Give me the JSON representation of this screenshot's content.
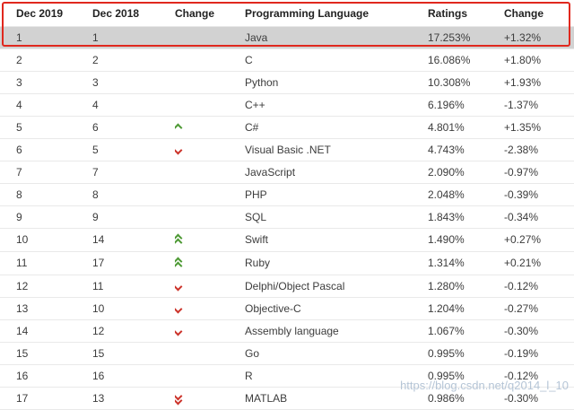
{
  "chart_data": {
    "type": "table",
    "columns": [
      "Dec 2019",
      "Dec 2018",
      "Change",
      "Programming Language",
      "Ratings",
      "Change"
    ],
    "highlight_row_index": 0,
    "rows": [
      {
        "r19": "1",
        "r18": "1",
        "chg": "",
        "lang": "Java",
        "rating": "17.253%",
        "delta": "+1.32%"
      },
      {
        "r19": "2",
        "r18": "2",
        "chg": "",
        "lang": "C",
        "rating": "16.086%",
        "delta": "+1.80%"
      },
      {
        "r19": "3",
        "r18": "3",
        "chg": "",
        "lang": "Python",
        "rating": "10.308%",
        "delta": "+1.93%"
      },
      {
        "r19": "4",
        "r18": "4",
        "chg": "",
        "lang": "C++",
        "rating": "6.196%",
        "delta": "-1.37%"
      },
      {
        "r19": "5",
        "r18": "6",
        "chg": "up",
        "lang": "C#",
        "rating": "4.801%",
        "delta": "+1.35%"
      },
      {
        "r19": "6",
        "r18": "5",
        "chg": "down",
        "lang": "Visual Basic .NET",
        "rating": "4.743%",
        "delta": "-2.38%"
      },
      {
        "r19": "7",
        "r18": "7",
        "chg": "",
        "lang": "JavaScript",
        "rating": "2.090%",
        "delta": "-0.97%"
      },
      {
        "r19": "8",
        "r18": "8",
        "chg": "",
        "lang": "PHP",
        "rating": "2.048%",
        "delta": "-0.39%"
      },
      {
        "r19": "9",
        "r18": "9",
        "chg": "",
        "lang": "SQL",
        "rating": "1.843%",
        "delta": "-0.34%"
      },
      {
        "r19": "10",
        "r18": "14",
        "chg": "up2",
        "lang": "Swift",
        "rating": "1.490%",
        "delta": "+0.27%"
      },
      {
        "r19": "11",
        "r18": "17",
        "chg": "up2",
        "lang": "Ruby",
        "rating": "1.314%",
        "delta": "+0.21%"
      },
      {
        "r19": "12",
        "r18": "11",
        "chg": "down",
        "lang": "Delphi/Object Pascal",
        "rating": "1.280%",
        "delta": "-0.12%"
      },
      {
        "r19": "13",
        "r18": "10",
        "chg": "down",
        "lang": "Objective-C",
        "rating": "1.204%",
        "delta": "-0.27%"
      },
      {
        "r19": "14",
        "r18": "12",
        "chg": "down",
        "lang": "Assembly language",
        "rating": "1.067%",
        "delta": "-0.30%"
      },
      {
        "r19": "15",
        "r18": "15",
        "chg": "",
        "lang": "Go",
        "rating": "0.995%",
        "delta": "-0.19%"
      },
      {
        "r19": "16",
        "r18": "16",
        "chg": "",
        "lang": "R",
        "rating": "0.995%",
        "delta": "-0.12%"
      },
      {
        "r19": "17",
        "r18": "13",
        "chg": "down2",
        "lang": "MATLAB",
        "rating": "0.986%",
        "delta": "-0.30%"
      }
    ]
  },
  "colors": {
    "annotation_red": "#e0281e",
    "up_green": "#4e9a35",
    "down_red": "#cc342b",
    "highlight_bg": "#d2d2d2"
  },
  "page": {
    "watermark": "https://blog.csdn.net/q2014_l_10"
  }
}
